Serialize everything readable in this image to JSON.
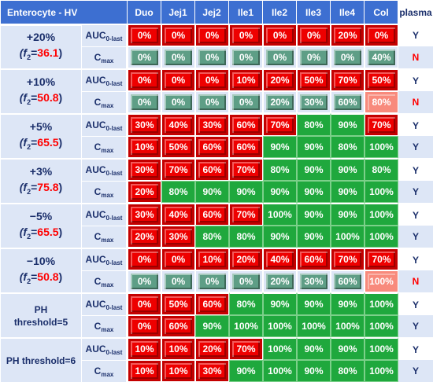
{
  "header": {
    "corner": "Enterocyte - HV",
    "columns": [
      "Duo",
      "Jej1",
      "Jej2",
      "Ile1",
      "Ile2",
      "Ile3",
      "Ile4",
      "Col"
    ],
    "plasma": "plasma"
  },
  "metric_labels": {
    "auc_main": "AUC",
    "auc_sub": "0-last",
    "cmax_main": "C",
    "cmax_sub": "max"
  },
  "colors": {
    "red": "#ee0000",
    "green": "#1fa83d",
    "teal": "#5e9e86",
    "salmon": "#f88a7c",
    "header": "#3d6fd1",
    "label_bg": "#dde6f6"
  },
  "groups": [
    {
      "line1": "+20%",
      "f2_prefix": "(f",
      "f2_sub": "2",
      "f2_eq": "=",
      "f2_value": "36.1",
      "f2_suffix": ")",
      "rows": [
        {
          "metric": "auc",
          "cells": [
            [
              "0%",
              "red"
            ],
            [
              "0%",
              "red"
            ],
            [
              "0%",
              "red"
            ],
            [
              "0%",
              "red"
            ],
            [
              "0%",
              "red"
            ],
            [
              "0%",
              "red"
            ],
            [
              "20%",
              "red"
            ],
            [
              "0%",
              "red"
            ]
          ],
          "plasma": "Y"
        },
        {
          "metric": "cmax",
          "cells": [
            [
              "0%",
              "teal"
            ],
            [
              "0%",
              "teal"
            ],
            [
              "0%",
              "teal"
            ],
            [
              "0%",
              "teal"
            ],
            [
              "0%",
              "teal"
            ],
            [
              "0%",
              "teal"
            ],
            [
              "0%",
              "teal"
            ],
            [
              "40%",
              "teal"
            ]
          ],
          "plasma": "N"
        }
      ]
    },
    {
      "line1": "+10%",
      "f2_prefix": "(f",
      "f2_sub": "2",
      "f2_eq": "=",
      "f2_value": "50.8",
      "f2_suffix": ")",
      "rows": [
        {
          "metric": "auc",
          "cells": [
            [
              "0%",
              "red"
            ],
            [
              "0%",
              "red"
            ],
            [
              "0%",
              "red"
            ],
            [
              "10%",
              "red"
            ],
            [
              "20%",
              "red"
            ],
            [
              "50%",
              "red"
            ],
            [
              "70%",
              "red"
            ],
            [
              "50%",
              "red"
            ]
          ],
          "plasma": "Y"
        },
        {
          "metric": "cmax",
          "cells": [
            [
              "0%",
              "teal"
            ],
            [
              "0%",
              "teal"
            ],
            [
              "0%",
              "teal"
            ],
            [
              "0%",
              "teal"
            ],
            [
              "20%",
              "teal"
            ],
            [
              "30%",
              "teal"
            ],
            [
              "60%",
              "teal"
            ],
            [
              "80%",
              "salmon"
            ]
          ],
          "plasma": "N"
        }
      ]
    },
    {
      "line1": "+5%",
      "f2_prefix": "(f",
      "f2_sub": "2",
      "f2_eq": "=",
      "f2_value": "65.5",
      "f2_suffix": ")",
      "rows": [
        {
          "metric": "auc",
          "cells": [
            [
              "30%",
              "red"
            ],
            [
              "40%",
              "red"
            ],
            [
              "30%",
              "red"
            ],
            [
              "60%",
              "red"
            ],
            [
              "70%",
              "red"
            ],
            [
              "80%",
              "green"
            ],
            [
              "90%",
              "green"
            ],
            [
              "70%",
              "red"
            ]
          ],
          "plasma": "Y"
        },
        {
          "metric": "cmax",
          "cells": [
            [
              "10%",
              "red"
            ],
            [
              "50%",
              "red"
            ],
            [
              "60%",
              "red"
            ],
            [
              "60%",
              "red"
            ],
            [
              "90%",
              "green"
            ],
            [
              "90%",
              "green"
            ],
            [
              "80%",
              "green"
            ],
            [
              "100%",
              "green"
            ]
          ],
          "plasma": "Y"
        }
      ]
    },
    {
      "line1": "+3%",
      "f2_prefix": "(f",
      "f2_sub": "2",
      "f2_eq": "=",
      "f2_value": "75.8",
      "f2_suffix": ")",
      "rows": [
        {
          "metric": "auc",
          "cells": [
            [
              "30%",
              "red"
            ],
            [
              "70%",
              "red"
            ],
            [
              "60%",
              "red"
            ],
            [
              "70%",
              "red"
            ],
            [
              "80%",
              "green"
            ],
            [
              "90%",
              "green"
            ],
            [
              "90%",
              "green"
            ],
            [
              "80%",
              "green"
            ]
          ],
          "plasma": "Y"
        },
        {
          "metric": "cmax",
          "cells": [
            [
              "20%",
              "red"
            ],
            [
              "80%",
              "green"
            ],
            [
              "90%",
              "green"
            ],
            [
              "90%",
              "green"
            ],
            [
              "90%",
              "green"
            ],
            [
              "90%",
              "green"
            ],
            [
              "90%",
              "green"
            ],
            [
              "100%",
              "green"
            ]
          ],
          "plasma": "Y"
        }
      ]
    },
    {
      "line1": "−5%",
      "f2_prefix": "(f",
      "f2_sub": "2",
      "f2_eq": "=",
      "f2_value": "65.5",
      "f2_suffix": ")",
      "rows": [
        {
          "metric": "auc",
          "cells": [
            [
              "30%",
              "red"
            ],
            [
              "40%",
              "red"
            ],
            [
              "60%",
              "red"
            ],
            [
              "70%",
              "red"
            ],
            [
              "100%",
              "green"
            ],
            [
              "90%",
              "green"
            ],
            [
              "90%",
              "green"
            ],
            [
              "100%",
              "green"
            ]
          ],
          "plasma": "Y"
        },
        {
          "metric": "cmax",
          "cells": [
            [
              "20%",
              "red"
            ],
            [
              "30%",
              "red"
            ],
            [
              "80%",
              "green"
            ],
            [
              "80%",
              "green"
            ],
            [
              "90%",
              "green"
            ],
            [
              "90%",
              "green"
            ],
            [
              "100%",
              "green"
            ],
            [
              "100%",
              "green"
            ]
          ],
          "plasma": "Y"
        }
      ]
    },
    {
      "line1": "−10%",
      "f2_prefix": "(f",
      "f2_sub": "2",
      "f2_eq": "=",
      "f2_value": "50.8",
      "f2_suffix": ")",
      "rows": [
        {
          "metric": "auc",
          "cells": [
            [
              "0%",
              "red"
            ],
            [
              "0%",
              "red"
            ],
            [
              "10%",
              "red"
            ],
            [
              "20%",
              "red"
            ],
            [
              "40%",
              "red"
            ],
            [
              "60%",
              "red"
            ],
            [
              "70%",
              "red"
            ],
            [
              "70%",
              "red"
            ]
          ],
          "plasma": "Y"
        },
        {
          "metric": "cmax",
          "cells": [
            [
              "0%",
              "teal"
            ],
            [
              "0%",
              "teal"
            ],
            [
              "0%",
              "teal"
            ],
            [
              "0%",
              "teal"
            ],
            [
              "20%",
              "teal"
            ],
            [
              "30%",
              "teal"
            ],
            [
              "60%",
              "teal"
            ],
            [
              "100%",
              "salmon"
            ]
          ],
          "plasma": "N"
        }
      ]
    },
    {
      "line1": "PH",
      "line2": "threshold=5",
      "rows": [
        {
          "metric": "auc",
          "cells": [
            [
              "0%",
              "red"
            ],
            [
              "50%",
              "red"
            ],
            [
              "60%",
              "red"
            ],
            [
              "80%",
              "green"
            ],
            [
              "90%",
              "green"
            ],
            [
              "90%",
              "green"
            ],
            [
              "90%",
              "green"
            ],
            [
              "100%",
              "green"
            ]
          ],
          "plasma": "Y"
        },
        {
          "metric": "cmax",
          "cells": [
            [
              "0%",
              "red"
            ],
            [
              "60%",
              "red"
            ],
            [
              "90%",
              "green"
            ],
            [
              "100%",
              "green"
            ],
            [
              "100%",
              "green"
            ],
            [
              "100%",
              "green"
            ],
            [
              "100%",
              "green"
            ],
            [
              "100%",
              "green"
            ]
          ],
          "plasma": "Y"
        }
      ]
    },
    {
      "line1": "PH threshold=6",
      "rows": [
        {
          "metric": "auc",
          "cells": [
            [
              "10%",
              "red"
            ],
            [
              "10%",
              "red"
            ],
            [
              "20%",
              "red"
            ],
            [
              "70%",
              "red"
            ],
            [
              "100%",
              "green"
            ],
            [
              "90%",
              "green"
            ],
            [
              "90%",
              "green"
            ],
            [
              "100%",
              "green"
            ]
          ],
          "plasma": "Y"
        },
        {
          "metric": "cmax",
          "cells": [
            [
              "10%",
              "red"
            ],
            [
              "10%",
              "red"
            ],
            [
              "30%",
              "red"
            ],
            [
              "90%",
              "green"
            ],
            [
              "100%",
              "green"
            ],
            [
              "90%",
              "green"
            ],
            [
              "80%",
              "green"
            ],
            [
              "100%",
              "green"
            ]
          ],
          "plasma": "Y"
        }
      ]
    }
  ]
}
